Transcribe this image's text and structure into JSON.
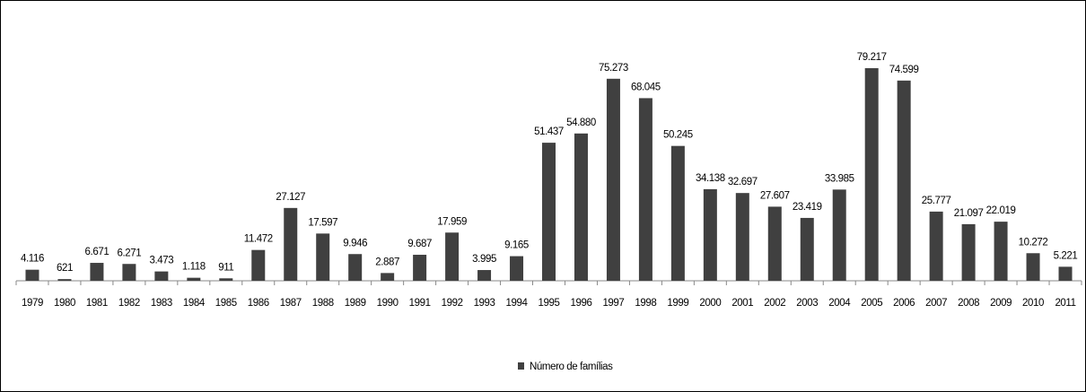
{
  "chart_data": {
    "type": "bar",
    "categories": [
      "1979",
      "1980",
      "1981",
      "1982",
      "1983",
      "1984",
      "1985",
      "1986",
      "1987",
      "1988",
      "1989",
      "1990",
      "1991",
      "1992",
      "1993",
      "1994",
      "1995",
      "1996",
      "1997",
      "1998",
      "1999",
      "2000",
      "2001",
      "2002",
      "2003",
      "2004",
      "2005",
      "2006",
      "2007",
      "2008",
      "2009",
      "2010",
      "2011"
    ],
    "series": [
      {
        "name": "Número de famílias",
        "color": "#404040",
        "values": [
          4116,
          621,
          6671,
          6271,
          3473,
          1118,
          911,
          11472,
          27127,
          17597,
          9946,
          2887,
          9687,
          17959,
          3995,
          9165,
          51437,
          54880,
          75273,
          68045,
          50245,
          34138,
          32697,
          27607,
          23419,
          33985,
          79217,
          74599,
          25777,
          21097,
          22019,
          10272,
          5221
        ],
        "value_labels": [
          "4.116",
          "621",
          "6.671",
          "6.271",
          "3.473",
          "1.118",
          "911",
          "11.472",
          "27.127",
          "17.597",
          "9.946",
          "2.887",
          "9.687",
          "17.959",
          "3.995",
          "9.165",
          "51.437",
          "54.880",
          "75.273",
          "68.045",
          "50.245",
          "34.138",
          "32.697",
          "27.607",
          "23.419",
          "33.985",
          "79.217",
          "74.599",
          "25.777",
          "21.097",
          "22.019",
          "10.272",
          "5.221"
        ]
      }
    ],
    "legend": "bottom"
  }
}
